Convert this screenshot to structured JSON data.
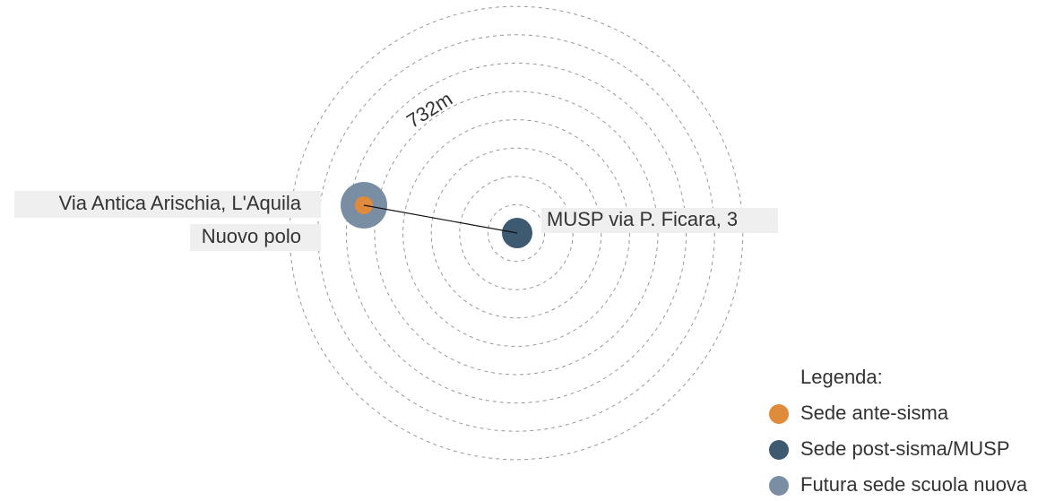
{
  "distance_label": "732m",
  "places": [
    {
      "label": "Via Antica Arischia, L'Aquila"
    },
    {
      "label": "Nuovo polo"
    },
    {
      "label": "MUSP via P. Ficara, 3"
    }
  ],
  "legend": {
    "title": "Legenda:",
    "items": [
      {
        "label": "Sede ante-sisma",
        "color": "#e08a3c"
      },
      {
        "label": "Sede post-sisma/MUSP",
        "color": "#3d5a70"
      },
      {
        "label": "Futura sede scuola nuova",
        "color": "#7a8ea3"
      }
    ]
  }
}
